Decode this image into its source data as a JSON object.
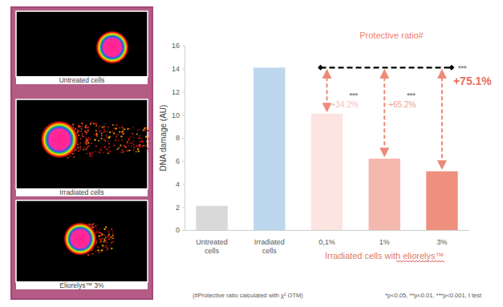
{
  "panels": [
    "Untreated cells",
    "Irradiated cells",
    "Eliorelys™ 3%"
  ],
  "chart_data": {
    "type": "bar",
    "y_label": "DNA damage (AU)",
    "categories": [
      "Untreated cells",
      "Irradiated cells",
      "0,1%",
      "1%",
      "3%"
    ],
    "values": [
      2.1,
      14.1,
      10.1,
      6.2,
      5.1
    ],
    "colors": [
      "#d9d9d9",
      "#bdd7ee",
      "#fce4e1",
      "#f5b8ae",
      "#ef907f"
    ],
    "ylim": [
      0,
      16
    ],
    "yticks": [
      0,
      2,
      4,
      6,
      8,
      10,
      12,
      14,
      16
    ],
    "grid": false,
    "group_label": "Irradiated cells with eliorelys™",
    "annotations": {
      "title": "Protective ratio#",
      "values": [
        34.2,
        65.2,
        75.1
      ],
      "value_labels": [
        "+34.2%",
        "+65.2%",
        "+75.1%"
      ],
      "significance": [
        "***",
        "***",
        "***"
      ]
    },
    "footnotes": [
      "(#Protective ratio calculated with χ² OTM)",
      "*p<0.05, **p<0.01, ***p<0.001, t test"
    ]
  }
}
